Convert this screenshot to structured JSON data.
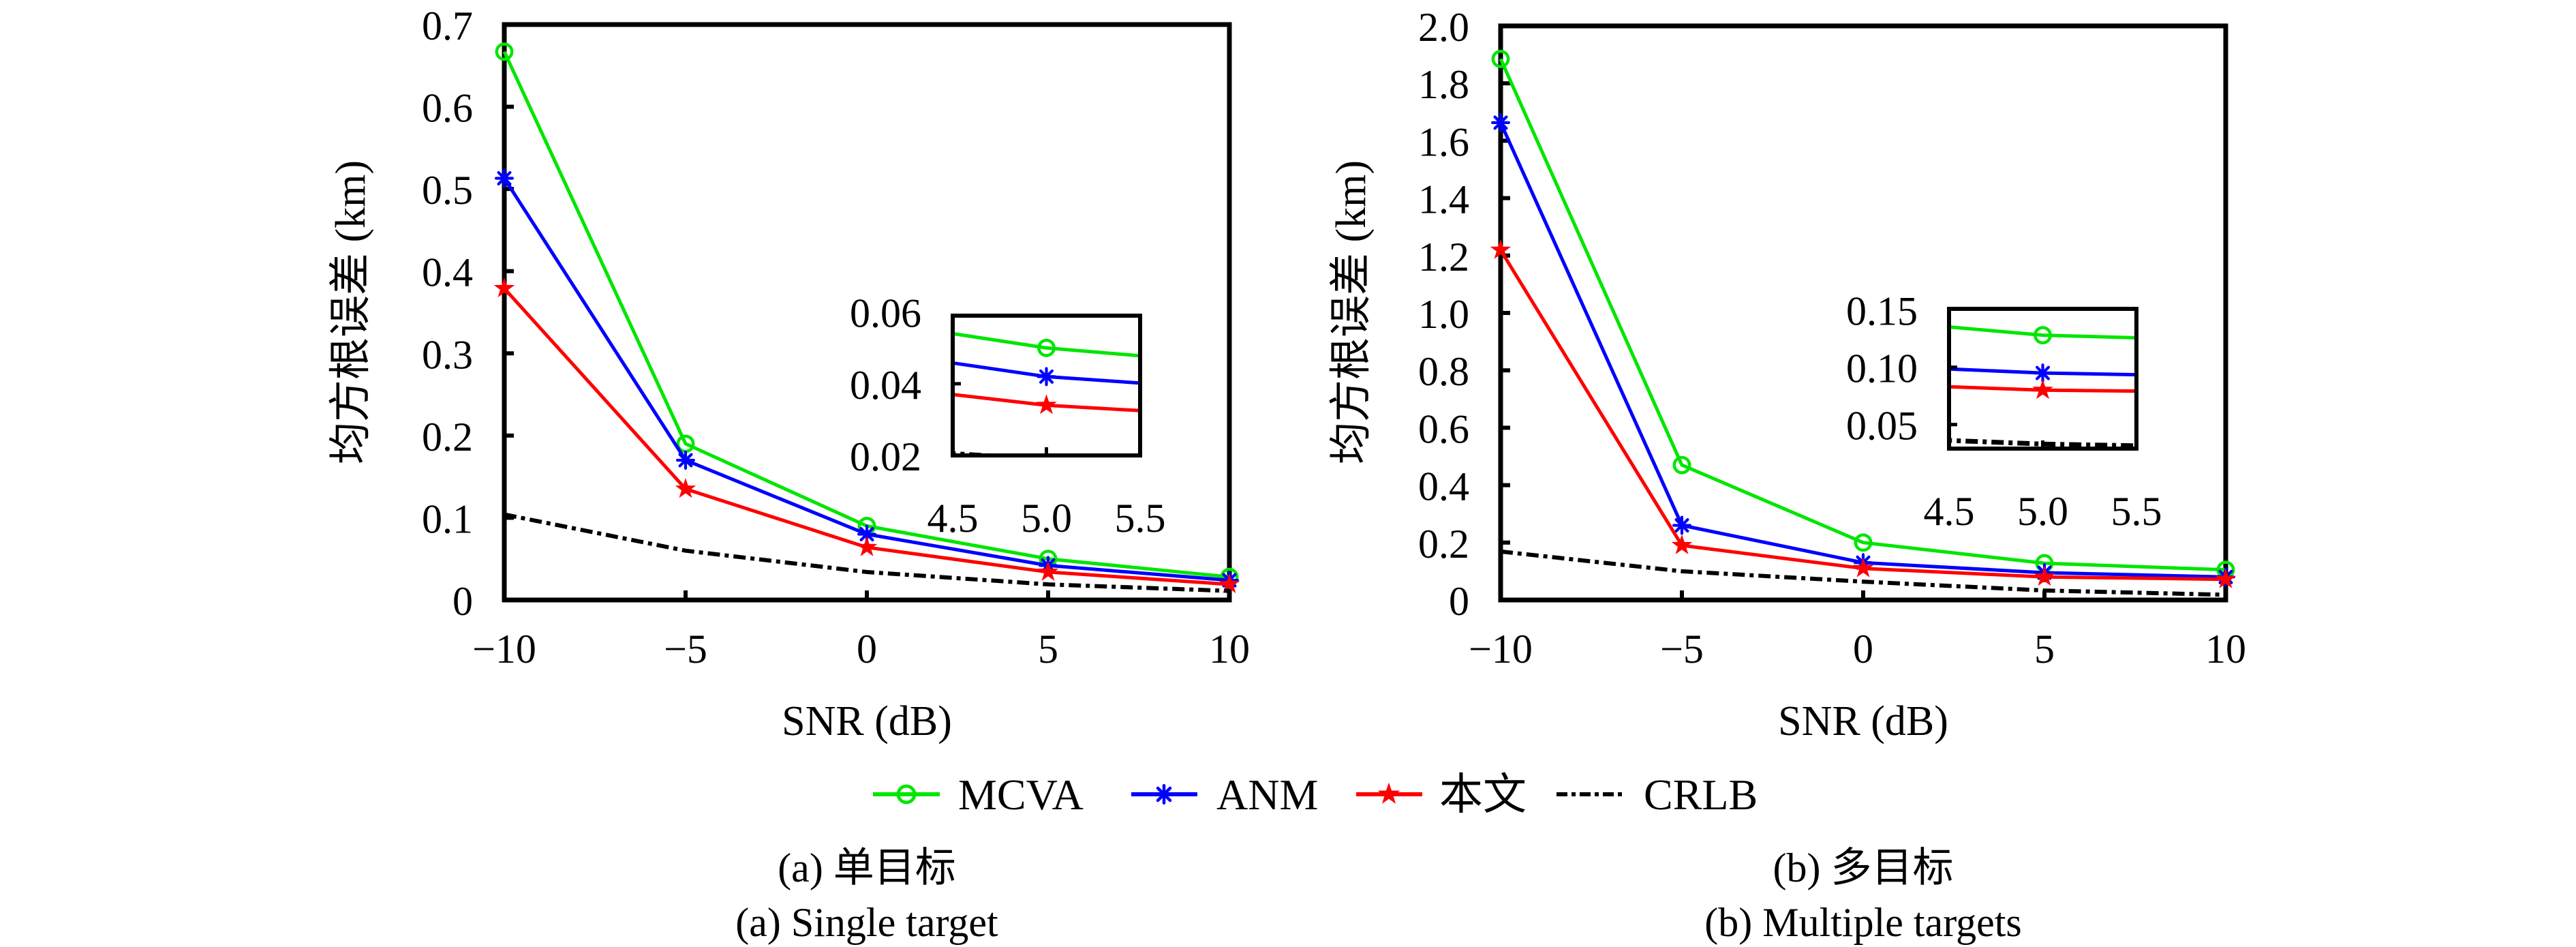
{
  "chart_data": [
    {
      "type": "line",
      "title": "",
      "xlabel": "SNR (dB)",
      "ylabel": "均方根误差 (km)",
      "x": [
        -10,
        -5,
        0,
        5,
        10
      ],
      "xlim": [
        -10,
        10
      ],
      "ylim": [
        0,
        0.7
      ],
      "xticks": [
        "−10",
        "−5",
        "0",
        "5",
        "10"
      ],
      "yticks": [
        "0",
        "0.1",
        "0.2",
        "0.3",
        "0.4",
        "0.5",
        "0.6",
        "0.7"
      ],
      "ytick_values": [
        0,
        0.1,
        0.2,
        0.3,
        0.4,
        0.5,
        0.6,
        0.7
      ],
      "grid": false,
      "series": [
        {
          "name": "MCVA",
          "color": "#00e600",
          "marker": "circle",
          "values": [
            0.667,
            0.19,
            0.09,
            0.05,
            0.028
          ]
        },
        {
          "name": "ANM",
          "color": "#0000ff",
          "marker": "asterisk",
          "values": [
            0.513,
            0.17,
            0.08,
            0.042,
            0.024
          ]
        },
        {
          "name": "本文",
          "color": "#ff0000",
          "marker": "star",
          "values": [
            0.379,
            0.135,
            0.064,
            0.034,
            0.019
          ]
        },
        {
          "name": "CRLB",
          "color": "#000000",
          "marker": "none",
          "dash": "dash-dot",
          "values": [
            0.104,
            0.06,
            0.034,
            0.019,
            0.011
          ]
        }
      ],
      "inset": {
        "xlim": [
          4.5,
          5.5
        ],
        "ylim": [
          0.02,
          0.059
        ],
        "xticks": [
          "4.5",
          "5.0",
          "5.5"
        ],
        "xtick_values": [
          4.5,
          5.0,
          5.5
        ],
        "yticks": [
          "0.02",
          "0.04",
          "0.06"
        ],
        "ytick_values": [
          0.02,
          0.04,
          0.06
        ]
      },
      "caption_cn": "(a) 单目标",
      "caption_en": "(a) Single target"
    },
    {
      "type": "line",
      "title": "",
      "xlabel": "SNR (dB)",
      "ylabel": "均方根误差 (km)",
      "x": [
        -10,
        -5,
        0,
        5,
        10
      ],
      "xlim": [
        -10,
        10
      ],
      "ylim": [
        0,
        2.0
      ],
      "xticks": [
        "−10",
        "−5",
        "0",
        "5",
        "10"
      ],
      "yticks": [
        "0",
        "0.2",
        "0.4",
        "0.6",
        "0.8",
        "1.0",
        "1.2",
        "1.4",
        "1.6",
        "1.8",
        "2.0"
      ],
      "ytick_values": [
        0,
        0.2,
        0.4,
        0.6,
        0.8,
        1.0,
        1.2,
        1.4,
        1.6,
        1.8,
        2.0
      ],
      "grid": false,
      "series": [
        {
          "name": "MCVA",
          "color": "#00e600",
          "marker": "circle",
          "values": [
            1.885,
            0.47,
            0.2,
            0.128,
            0.105
          ]
        },
        {
          "name": "ANM",
          "color": "#0000ff",
          "marker": "asterisk",
          "values": [
            1.663,
            0.26,
            0.13,
            0.095,
            0.08
          ]
        },
        {
          "name": "本文",
          "color": "#ff0000",
          "marker": "star",
          "values": [
            1.219,
            0.19,
            0.11,
            0.08,
            0.072
          ]
        },
        {
          "name": "CRLB",
          "color": "#000000",
          "marker": "none",
          "dash": "dash-dot",
          "values": [
            0.169,
            0.1,
            0.064,
            0.033,
            0.018
          ]
        }
      ],
      "inset": {
        "xlim": [
          4.5,
          5.5
        ],
        "ylim": [
          0.029,
          0.151
        ],
        "xticks": [
          "4.5",
          "5.0",
          "5.5"
        ],
        "xtick_values": [
          4.5,
          5.0,
          5.5
        ],
        "yticks": [
          "0.05",
          "0.10",
          "0.15"
        ],
        "ytick_values": [
          0.05,
          0.1,
          0.15
        ]
      },
      "caption_cn": "(b) 多目标",
      "caption_en": "(b) Multiple targets"
    }
  ],
  "legend": {
    "placement": "bottom-center",
    "items": [
      {
        "label": "MCVA",
        "color": "#00e600",
        "marker": "circle"
      },
      {
        "label": "ANM",
        "color": "#0000ff",
        "marker": "asterisk"
      },
      {
        "label": "本文",
        "color": "#ff0000",
        "marker": "star"
      },
      {
        "label": "CRLB",
        "color": "#000000",
        "marker": "none"
      }
    ]
  }
}
